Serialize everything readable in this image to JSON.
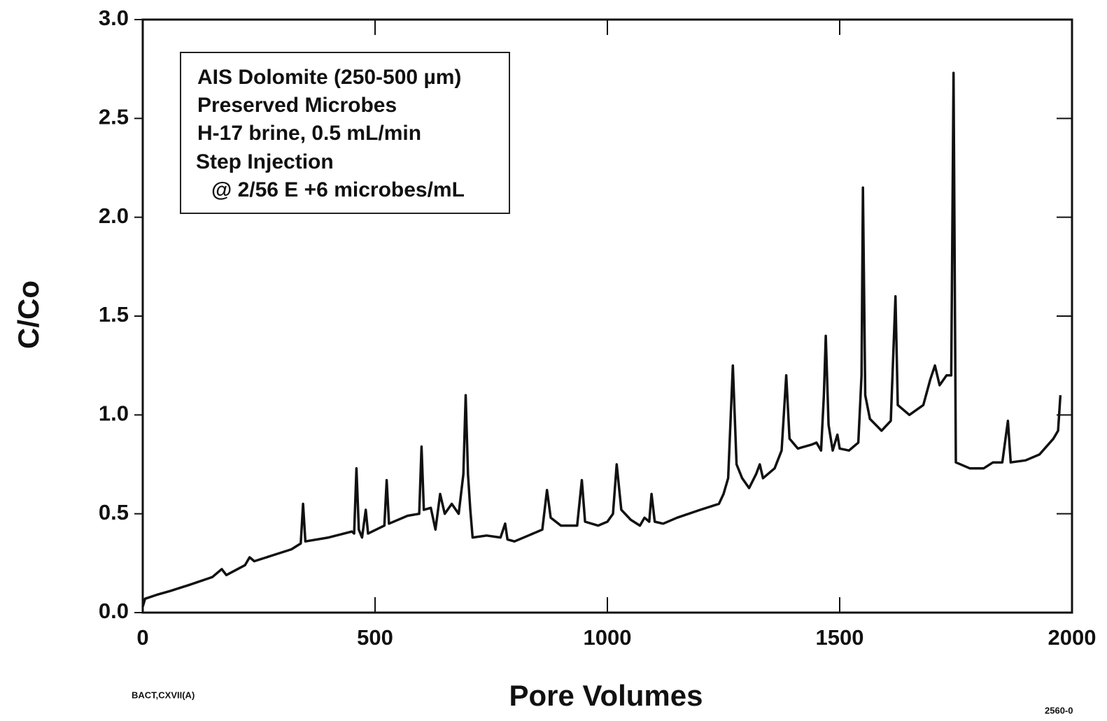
{
  "chart_data": {
    "type": "line",
    "xlabel": "Pore Volumes",
    "ylabel": "C/Co",
    "annotations": [
      "AIS Dolomite (250-500 µm)",
      "Preserved Microbes",
      "H-17 brine, 0.5 mL/min",
      "Step Injection",
      "@ 2/56 E +6 microbes/mL"
    ],
    "footnotes": [
      "BACT,CXVII(A)",
      "2560-0"
    ],
    "xlim": [
      0,
      2000
    ],
    "ylim": [
      0,
      3
    ],
    "xticks": [
      0,
      500,
      1000,
      1500,
      2000
    ],
    "yticks": [
      {
        "value": 0,
        "label": "0.0"
      },
      0.5,
      {
        "value": 1,
        "label": "1.0"
      },
      1.5,
      {
        "value": 2,
        "label": "2.0"
      },
      2.5,
      {
        "value": 3,
        "label": "3.0"
      }
    ],
    "grid": false,
    "series": [
      {
        "color": "#111111",
        "x": [
          0,
          5,
          30,
          60,
          100,
          150,
          170,
          180,
          220,
          230,
          240,
          280,
          320,
          340,
          345,
          350,
          400,
          450,
          455,
          460,
          465,
          472,
          480,
          485,
          520,
          525,
          530,
          570,
          595,
          600,
          605,
          620,
          630,
          640,
          650,
          665,
          680,
          690,
          695,
          700,
          705,
          710,
          740,
          770,
          780,
          785,
          800,
          830,
          860,
          870,
          878,
          900,
          935,
          945,
          952,
          980,
          1000,
          1012,
          1020,
          1030,
          1050,
          1070,
          1080,
          1090,
          1095,
          1102,
          1120,
          1150,
          1200,
          1240,
          1250,
          1260,
          1270,
          1278,
          1290,
          1305,
          1320,
          1328,
          1335,
          1360,
          1375,
          1385,
          1392,
          1410,
          1440,
          1450,
          1460,
          1466,
          1470,
          1476,
          1485,
          1495,
          1500,
          1520,
          1540,
          1547,
          1550,
          1555,
          1565,
          1590,
          1610,
          1620,
          1625,
          1650,
          1680,
          1695,
          1705,
          1715,
          1730,
          1740,
          1745,
          1750,
          1780,
          1810,
          1830,
          1850,
          1862,
          1868,
          1900,
          1930,
          1960,
          1970,
          1975
        ],
        "values": [
          0.03,
          0.07,
          0.09,
          0.11,
          0.14,
          0.18,
          0.22,
          0.19,
          0.24,
          0.28,
          0.26,
          0.29,
          0.32,
          0.35,
          0.55,
          0.36,
          0.38,
          0.41,
          0.4,
          0.73,
          0.42,
          0.38,
          0.52,
          0.4,
          0.44,
          0.67,
          0.45,
          0.49,
          0.5,
          0.84,
          0.52,
          0.53,
          0.42,
          0.6,
          0.5,
          0.55,
          0.5,
          0.7,
          1.1,
          0.7,
          0.52,
          0.38,
          0.39,
          0.38,
          0.45,
          0.37,
          0.36,
          0.39,
          0.42,
          0.62,
          0.48,
          0.44,
          0.44,
          0.67,
          0.46,
          0.44,
          0.46,
          0.5,
          0.75,
          0.52,
          0.47,
          0.44,
          0.48,
          0.46,
          0.6,
          0.46,
          0.45,
          0.48,
          0.52,
          0.55,
          0.6,
          0.68,
          1.25,
          0.75,
          0.68,
          0.63,
          0.7,
          0.75,
          0.68,
          0.73,
          0.82,
          1.2,
          0.88,
          0.83,
          0.85,
          0.86,
          0.82,
          1.1,
          1.4,
          0.95,
          0.82,
          0.9,
          0.83,
          0.82,
          0.86,
          1.2,
          2.15,
          1.1,
          0.98,
          0.92,
          0.97,
          1.6,
          1.05,
          1.0,
          1.05,
          1.18,
          1.25,
          1.15,
          1.2,
          1.2,
          2.73,
          0.76,
          0.73,
          0.73,
          0.76,
          0.76,
          0.97,
          0.76,
          0.77,
          0.8,
          0.88,
          0.92,
          1.1
        ]
      }
    ]
  }
}
